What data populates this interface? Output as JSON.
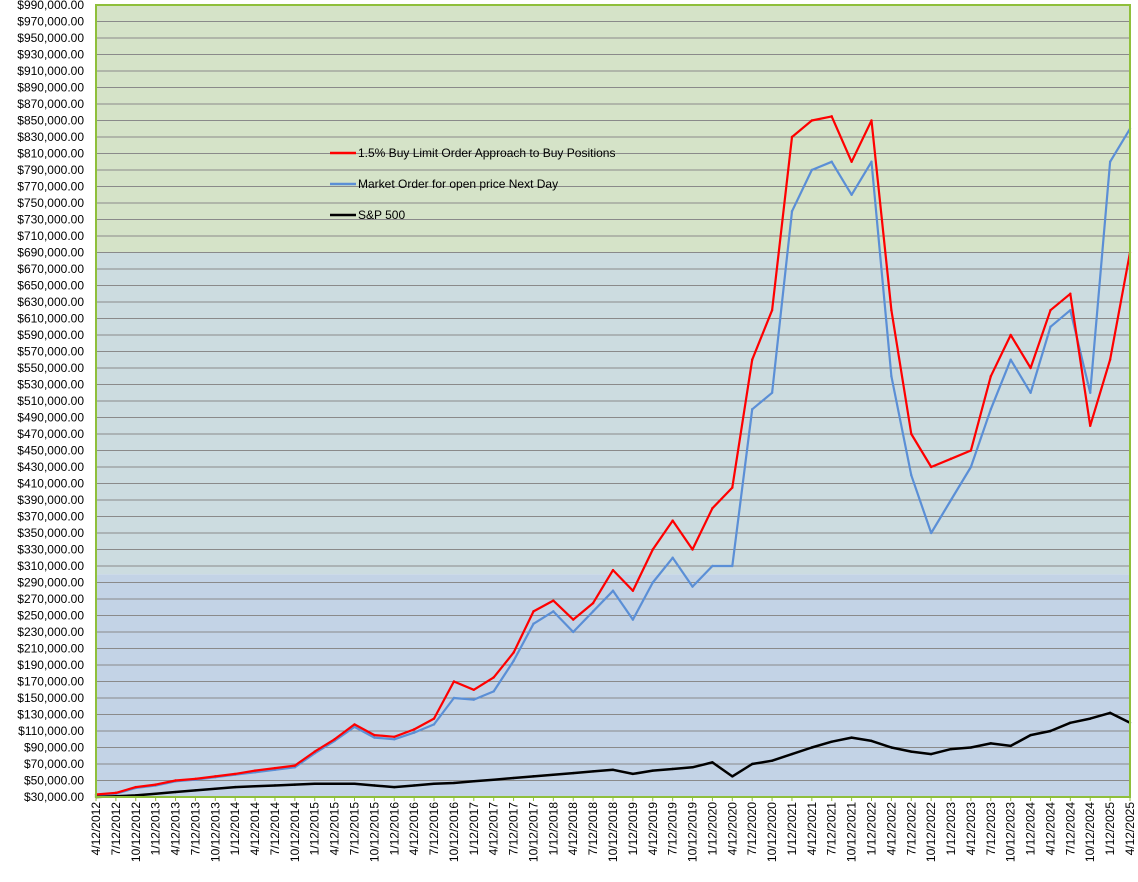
{
  "chart_data": {
    "type": "line",
    "title": "",
    "xlabel": "",
    "ylabel": "",
    "ylim": [
      30000,
      990000
    ],
    "grid": true,
    "legend_position": "top-center",
    "background_bands": [
      {
        "from": 30000,
        "to": 300000,
        "color": "#c3d3e6"
      },
      {
        "from": 300000,
        "to": 690000,
        "color": "#ccdce0"
      },
      {
        "from": 690000,
        "to": 990000,
        "color": "#d5e3c8"
      }
    ],
    "y_ticks": [
      "$30,000.00",
      "$50,000.00",
      "$70,000.00",
      "$90,000.00",
      "$110,000.00",
      "$130,000.00",
      "$150,000.00",
      "$170,000.00",
      "$190,000.00",
      "$210,000.00",
      "$230,000.00",
      "$250,000.00",
      "$270,000.00",
      "$290,000.00",
      "$310,000.00",
      "$330,000.00",
      "$350,000.00",
      "$370,000.00",
      "$390,000.00",
      "$410,000.00",
      "$430,000.00",
      "$450,000.00",
      "$470,000.00",
      "$490,000.00",
      "$510,000.00",
      "$530,000.00",
      "$550,000.00",
      "$570,000.00",
      "$590,000.00",
      "$610,000.00",
      "$630,000.00",
      "$650,000.00",
      "$670,000.00",
      "$690,000.00",
      "$710,000.00",
      "$730,000.00",
      "$750,000.00",
      "$770,000.00",
      "$790,000.00",
      "$810,000.00",
      "$830,000.00",
      "$850,000.00",
      "$870,000.00",
      "$890,000.00",
      "$910,000.00",
      "$930,000.00",
      "$950,000.00",
      "$970,000.00",
      "$990,000.00"
    ],
    "x_ticks": [
      "4/12/2012",
      "7/12/2012",
      "10/12/2012",
      "1/12/2013",
      "4/12/2013",
      "7/12/2013",
      "10/12/2013",
      "1/12/2014",
      "4/12/2014",
      "7/12/2014",
      "10/12/2014",
      "1/12/2015",
      "4/12/2015",
      "7/12/2015",
      "10/12/2015",
      "1/12/2016",
      "4/12/2016",
      "7/12/2016",
      "10/12/2016",
      "1/12/2017",
      "4/12/2017",
      "7/12/2017",
      "10/12/2017",
      "1/12/2018",
      "4/12/2018",
      "7/12/2018",
      "10/12/2018",
      "1/12/2019",
      "4/12/2019",
      "7/12/2019",
      "10/12/2019",
      "1/12/2020",
      "4/12/2020",
      "7/12/2020",
      "10/12/2020",
      "1/12/2021",
      "4/12/2021",
      "7/12/2021",
      "10/12/2021",
      "1/12/2022",
      "4/12/2022",
      "7/12/2022",
      "10/12/2022",
      "1/12/2023",
      "4/12/2023",
      "7/12/2023",
      "10/12/2023",
      "1/12/2024",
      "4/12/2024",
      "7/12/2024",
      "10/12/2024",
      "1/12/2025",
      "4/12/2025"
    ],
    "series": [
      {
        "name": "1.5% Buy Limit Order Approach to Buy Positions",
        "color": "#ff0000",
        "x": [
          "4/12/2012",
          "7/12/2012",
          "10/12/2012",
          "1/12/2013",
          "4/12/2013",
          "7/12/2013",
          "10/12/2013",
          "1/12/2014",
          "4/12/2014",
          "7/12/2014",
          "10/12/2014",
          "1/12/2015",
          "4/12/2015",
          "7/12/2015",
          "10/12/2015",
          "1/12/2016",
          "4/12/2016",
          "7/12/2016",
          "10/12/2016",
          "1/12/2017",
          "4/12/2017",
          "7/12/2017",
          "10/12/2017",
          "1/12/2018",
          "4/12/2018",
          "7/12/2018",
          "10/12/2018",
          "1/12/2019",
          "4/12/2019",
          "7/12/2019",
          "10/12/2019",
          "1/12/2020",
          "4/12/2020",
          "7/12/2020",
          "10/12/2020",
          "1/12/2021",
          "4/12/2021",
          "7/12/2021",
          "10/12/2021",
          "1/12/2022",
          "4/12/2022",
          "7/12/2022",
          "10/12/2022",
          "1/12/2023",
          "4/12/2023",
          "7/12/2023",
          "10/12/2023",
          "1/12/2024",
          "4/12/2024",
          "7/12/2024",
          "10/12/2024",
          "1/12/2025",
          "4/12/2025"
        ],
        "values": [
          33000,
          35000,
          42000,
          45000,
          50000,
          52000,
          55000,
          58000,
          62000,
          65000,
          68000,
          85000,
          100000,
          118000,
          105000,
          103000,
          112000,
          125000,
          170000,
          160000,
          175000,
          205000,
          255000,
          268000,
          245000,
          265000,
          305000,
          280000,
          330000,
          365000,
          330000,
          380000,
          405000,
          560000,
          620000,
          830000,
          850000,
          855000,
          800000,
          850000,
          620000,
          470000,
          430000,
          440000,
          450000,
          540000,
          590000,
          550000,
          620000,
          640000,
          480000,
          560000,
          690000
        ]
      },
      {
        "name": "Market Order for open price Next Day",
        "color": "#5b8fd6",
        "x": [
          "4/12/2012",
          "7/12/2012",
          "10/12/2012",
          "1/12/2013",
          "4/12/2013",
          "7/12/2013",
          "10/12/2013",
          "1/12/2014",
          "4/12/2014",
          "7/12/2014",
          "10/12/2014",
          "1/12/2015",
          "4/12/2015",
          "7/12/2015",
          "10/12/2015",
          "1/12/2016",
          "4/12/2016",
          "7/12/2016",
          "10/12/2016",
          "1/12/2017",
          "4/12/2017",
          "7/12/2017",
          "10/12/2017",
          "1/12/2018",
          "4/12/2018",
          "7/12/2018",
          "10/12/2018",
          "1/12/2019",
          "4/12/2019",
          "7/12/2019",
          "10/12/2019",
          "1/12/2020",
          "4/12/2020",
          "7/12/2020",
          "10/12/2020",
          "1/12/2021",
          "4/12/2021",
          "7/12/2021",
          "10/12/2021",
          "1/12/2022",
          "4/12/2022",
          "7/12/2022",
          "10/12/2022",
          "1/12/2023",
          "4/12/2023",
          "7/12/2023",
          "10/12/2023",
          "1/12/2024",
          "4/12/2024",
          "7/12/2024",
          "10/12/2024",
          "1/12/2025",
          "4/12/2025"
        ],
        "values": [
          32000,
          34000,
          41000,
          44000,
          49000,
          51000,
          54000,
          57000,
          60000,
          63000,
          66000,
          83000,
          98000,
          115000,
          102000,
          100000,
          108000,
          118000,
          150000,
          148000,
          158000,
          195000,
          240000,
          255000,
          230000,
          255000,
          280000,
          245000,
          290000,
          320000,
          285000,
          310000,
          310000,
          500000,
          520000,
          740000,
          790000,
          800000,
          760000,
          800000,
          540000,
          420000,
          350000,
          390000,
          430000,
          500000,
          560000,
          520000,
          600000,
          620000,
          520000,
          800000,
          840000
        ]
      },
      {
        "name": "S&P 500",
        "color": "#000000",
        "x": [
          "4/12/2012",
          "7/12/2012",
          "10/12/2012",
          "1/12/2013",
          "4/12/2013",
          "7/12/2013",
          "10/12/2013",
          "1/12/2014",
          "4/12/2014",
          "7/12/2014",
          "10/12/2014",
          "1/12/2015",
          "4/12/2015",
          "7/12/2015",
          "10/12/2015",
          "1/12/2016",
          "4/12/2016",
          "7/12/2016",
          "10/12/2016",
          "1/12/2017",
          "4/12/2017",
          "7/12/2017",
          "10/12/2017",
          "1/12/2018",
          "4/12/2018",
          "7/12/2018",
          "10/12/2018",
          "1/12/2019",
          "4/12/2019",
          "7/12/2019",
          "10/12/2019",
          "1/12/2020",
          "4/12/2020",
          "7/12/2020",
          "10/12/2020",
          "1/12/2021",
          "4/12/2021",
          "7/12/2021",
          "10/12/2021",
          "1/12/2022",
          "4/12/2022",
          "7/12/2022",
          "10/12/2022",
          "1/12/2023",
          "4/12/2023",
          "7/12/2023",
          "10/12/2023",
          "1/12/2024",
          "4/12/2024",
          "7/12/2024",
          "10/12/2024",
          "1/12/2025",
          "4/12/2025"
        ],
        "values": [
          30000,
          31000,
          32000,
          34000,
          36000,
          38000,
          40000,
          42000,
          43000,
          44000,
          45000,
          46000,
          46000,
          46000,
          44000,
          42000,
          44000,
          46000,
          47000,
          49000,
          51000,
          53000,
          55000,
          57000,
          59000,
          61000,
          63000,
          58000,
          62000,
          64000,
          66000,
          72000,
          55000,
          70000,
          74000,
          82000,
          90000,
          97000,
          102000,
          98000,
          90000,
          85000,
          82000,
          88000,
          90000,
          95000,
          92000,
          105000,
          110000,
          120000,
          125000,
          132000,
          120000
        ]
      }
    ]
  }
}
